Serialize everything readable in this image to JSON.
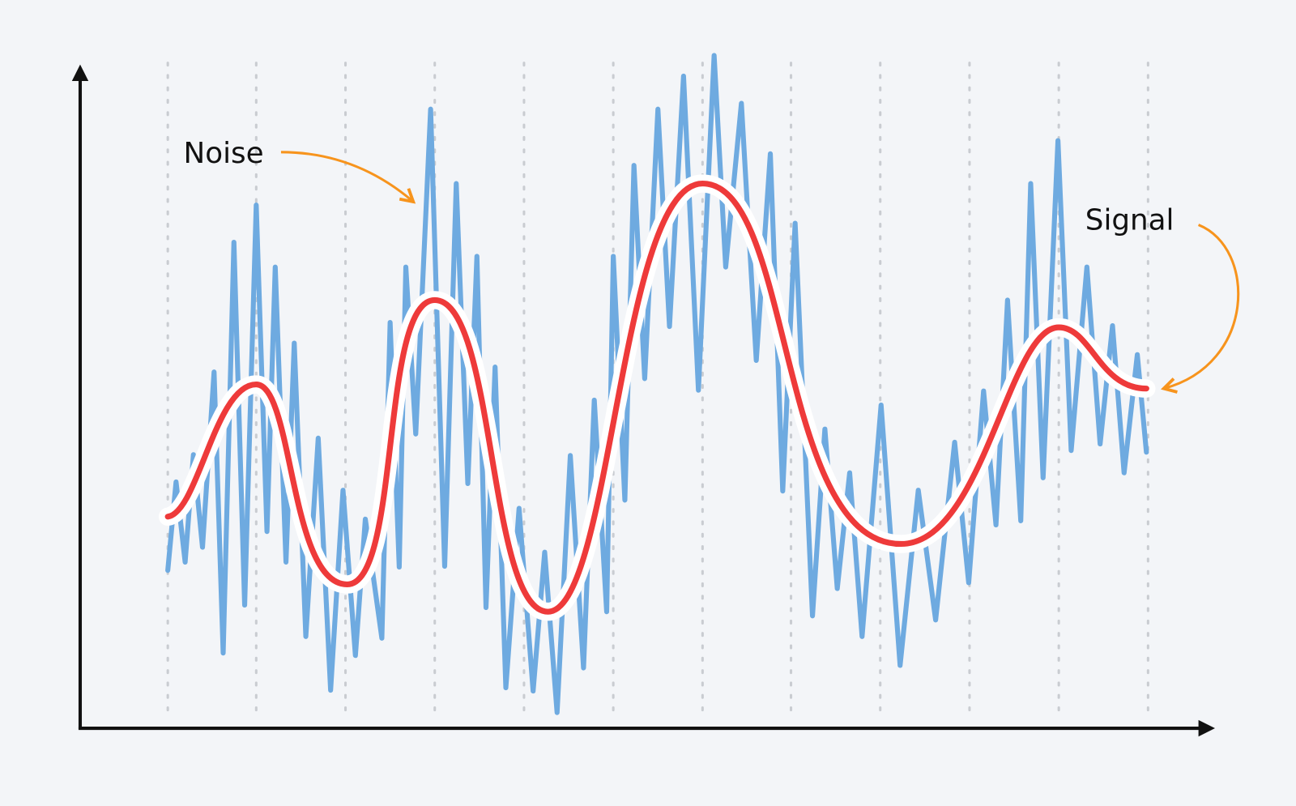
{
  "annotations": {
    "noise": "Noise",
    "signal": "Signal"
  }
}
